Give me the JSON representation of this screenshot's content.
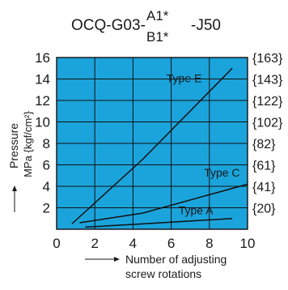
{
  "colors": {
    "plot_background": "#1ba3dc",
    "grid": "#111111",
    "series_line": "#111111",
    "text": "#1a1a1a"
  },
  "chart_data": {
    "type": "line",
    "title": {
      "prefix": "OCQ-G03-",
      "upper": "A1*",
      "lower": "B1*",
      "suffix": "-J50"
    },
    "xlabel": [
      "Number of adjusting",
      "screw rotations"
    ],
    "ylabel": [
      "Pressure",
      "MPa {kgf/cm²}"
    ],
    "xlim": [
      0,
      10
    ],
    "ylim": [
      0,
      16
    ],
    "x_ticks": [
      "0",
      "2",
      "4",
      "6",
      "8",
      "10"
    ],
    "y_ticks": [
      "2",
      "4",
      "6",
      "8",
      "10",
      "12",
      "14",
      "16"
    ],
    "y2_ticks": [
      "{20}",
      "{41}",
      "{61}",
      "{82}",
      "{102}",
      "{122}",
      "{143}",
      "{163}"
    ],
    "grid": true,
    "legend": "none",
    "series": [
      {
        "name": "Type E",
        "x": [
          0.8,
          4.5,
          9.2
        ],
        "y": [
          0.5,
          6.5,
          15.0
        ]
      },
      {
        "name": "Type C",
        "x": [
          1.2,
          4.5,
          10.0
        ],
        "y": [
          0.6,
          1.5,
          4.2
        ]
      },
      {
        "name": "Type A",
        "x": [
          1.5,
          4.5,
          9.2
        ],
        "y": [
          0.2,
          0.5,
          1.0
        ]
      }
    ]
  }
}
